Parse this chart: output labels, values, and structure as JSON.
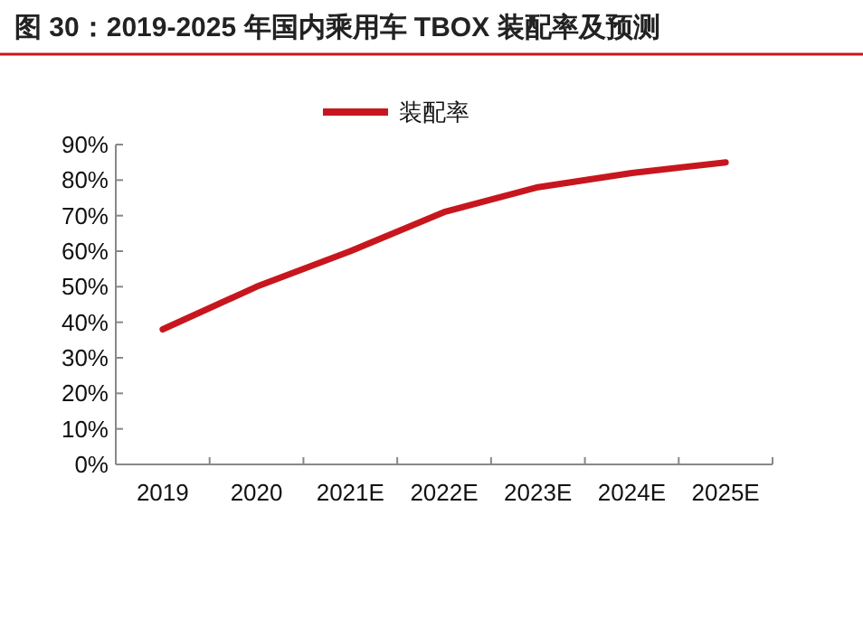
{
  "chart_data": {
    "type": "line",
    "title": "图 30：2019-2025 年国内乘用车 TBOX 装配率及预测",
    "categories": [
      "2019",
      "2020",
      "2021E",
      "2022E",
      "2023E",
      "2024E",
      "2025E"
    ],
    "series": [
      {
        "name": "装配率",
        "color": "#c8161e",
        "values": [
          38,
          50,
          60,
          71,
          78,
          82,
          85
        ]
      }
    ],
    "ylim": [
      0,
      90
    ],
    "yticks": [
      {
        "value": 0,
        "label": "0%"
      },
      {
        "value": 10,
        "label": "10%"
      },
      {
        "value": 20,
        "label": "20%"
      },
      {
        "value": 30,
        "label": "30%"
      },
      {
        "value": 40,
        "label": "40%"
      },
      {
        "value": 50,
        "label": "50%"
      },
      {
        "value": 60,
        "label": "60%"
      },
      {
        "value": 70,
        "label": "70%"
      },
      {
        "value": 80,
        "label": "80%"
      },
      {
        "value": 90,
        "label": "90%"
      }
    ],
    "legend": "top",
    "grid": false
  }
}
